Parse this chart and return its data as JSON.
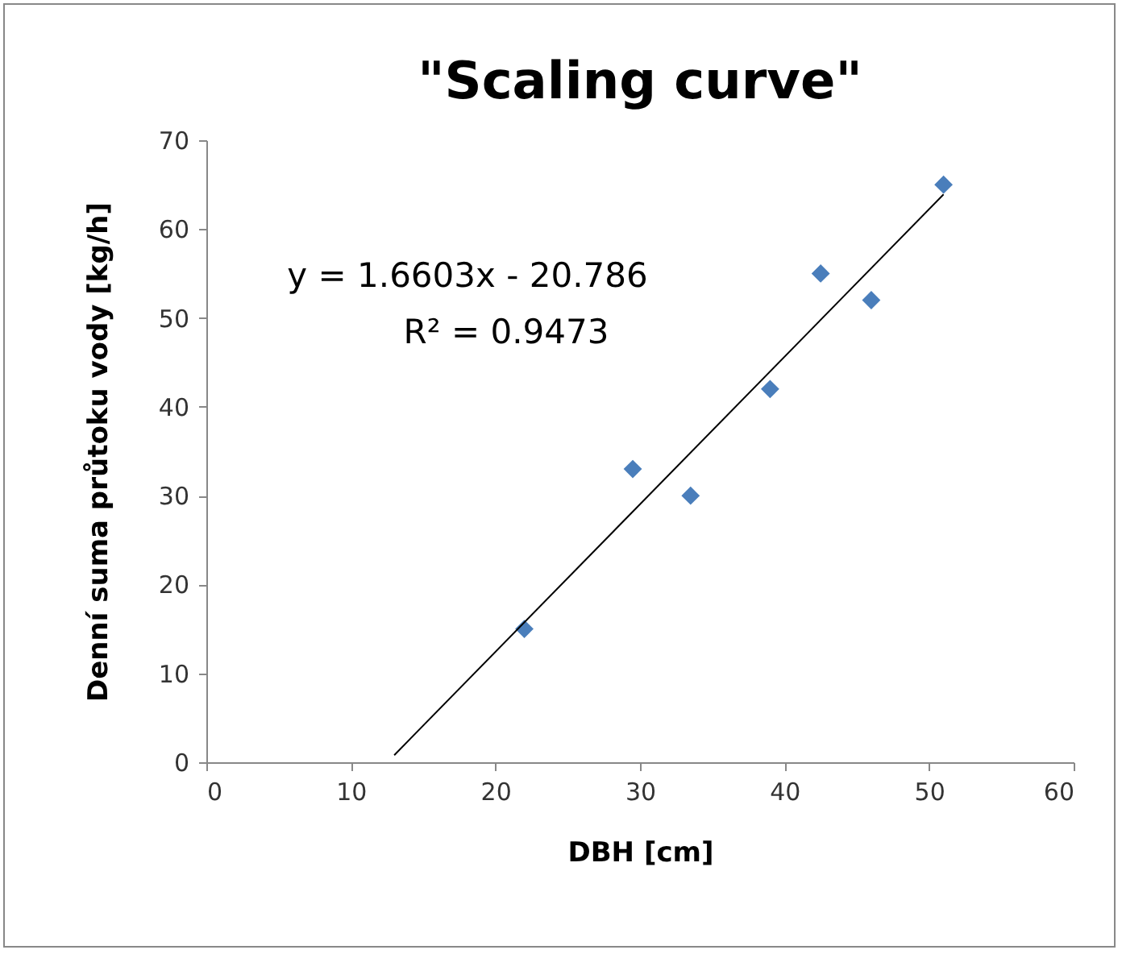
{
  "chart_data": {
    "type": "scatter",
    "title": "\"Scaling curve\"",
    "xlabel": "DBH [cm]",
    "ylabel": "Denní suma průtoku vody [kg/h]",
    "annotations": [
      "y = 1.6603x - 20.786",
      "R² = 0.9473"
    ],
    "series": [
      {
        "marker": "diamond",
        "color": "#4a7ebb",
        "x": [
          22,
          29.5,
          33.5,
          39,
          42.5,
          46,
          51
        ],
        "values": [
          15,
          33,
          30,
          42,
          55,
          52,
          65
        ]
      },
      {
        "type": "line",
        "marker": "none",
        "color": "#000000",
        "x": [
          13,
          51
        ],
        "values": [
          0.8,
          63.9
        ]
      }
    ],
    "grid": false,
    "xlim": [
      0,
      60
    ],
    "xticks": [
      0,
      10,
      20,
      30,
      40,
      50,
      60
    ],
    "ylim": [
      0,
      70
    ],
    "yticks": [
      0,
      10,
      20,
      30,
      40,
      50,
      60,
      70
    ]
  }
}
